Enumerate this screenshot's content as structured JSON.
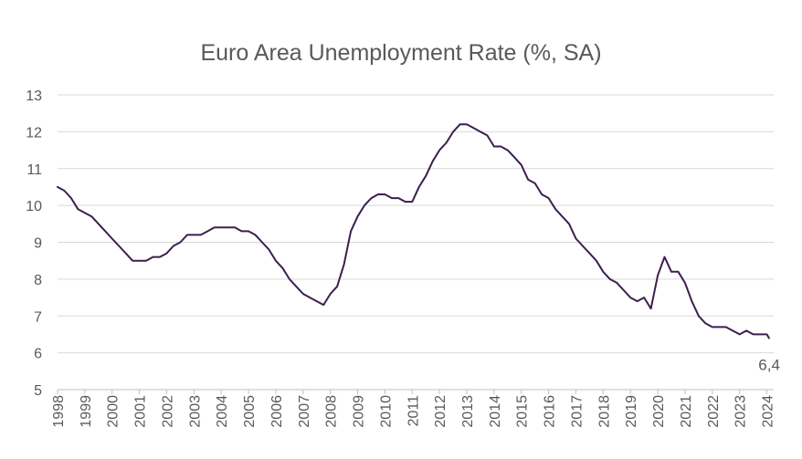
{
  "chart_data": {
    "type": "line",
    "title": "Euro Area Unemployment Rate (%, SA)",
    "xlabel": "",
    "ylabel": "",
    "ylim": [
      5,
      13
    ],
    "xlim": [
      1998,
      2024.25
    ],
    "yticks": [
      "5",
      "6",
      "7",
      "8",
      "9",
      "10",
      "11",
      "12",
      "13"
    ],
    "xticks": [
      "1998",
      "1999",
      "2000",
      "2001",
      "2002",
      "2003",
      "2004",
      "2005",
      "2006",
      "2007",
      "2008",
      "2009",
      "2010",
      "2011",
      "2012",
      "2013",
      "2014",
      "2015",
      "2016",
      "2017",
      "2018",
      "2019",
      "2020",
      "2021",
      "2022",
      "2023",
      "2024"
    ],
    "grid": true,
    "legend": "none",
    "line_color": "#3d1e4e",
    "end_label": "6,4",
    "series": [
      {
        "x": [
          1998.0,
          1998.25,
          1998.5,
          1998.75,
          1999.0,
          1999.25,
          1999.5,
          1999.75,
          2000.0,
          2000.25,
          2000.5,
          2000.75,
          2001.0,
          2001.25,
          2001.5,
          2001.75,
          2002.0,
          2002.25,
          2002.5,
          2002.75,
          2003.0,
          2003.25,
          2003.5,
          2003.75,
          2004.0,
          2004.25,
          2004.5,
          2004.75,
          2005.0,
          2005.25,
          2005.5,
          2005.75,
          2006.0,
          2006.25,
          2006.5,
          2006.75,
          2007.0,
          2007.25,
          2007.5,
          2007.75,
          2008.0,
          2008.25,
          2008.5,
          2008.75,
          2009.0,
          2009.25,
          2009.5,
          2009.75,
          2010.0,
          2010.25,
          2010.5,
          2010.75,
          2011.0,
          2011.25,
          2011.5,
          2011.75,
          2012.0,
          2012.25,
          2012.5,
          2012.75,
          2013.0,
          2013.25,
          2013.5,
          2013.75,
          2014.0,
          2014.25,
          2014.5,
          2014.75,
          2015.0,
          2015.25,
          2015.5,
          2015.75,
          2016.0,
          2016.25,
          2016.5,
          2016.75,
          2017.0,
          2017.25,
          2017.5,
          2017.75,
          2018.0,
          2018.25,
          2018.5,
          2018.75,
          2019.0,
          2019.25,
          2019.5,
          2019.75,
          2020.0,
          2020.25,
          2020.5,
          2020.75,
          2021.0,
          2021.25,
          2021.5,
          2021.75,
          2022.0,
          2022.25,
          2022.5,
          2022.75,
          2023.0,
          2023.25,
          2023.5,
          2023.75,
          2024.0,
          2024.08
        ],
        "values": [
          10.5,
          10.4,
          10.2,
          9.9,
          9.8,
          9.7,
          9.5,
          9.3,
          9.1,
          8.9,
          8.7,
          8.5,
          8.5,
          8.5,
          8.6,
          8.6,
          8.7,
          8.9,
          9.0,
          9.2,
          9.2,
          9.2,
          9.3,
          9.4,
          9.4,
          9.4,
          9.4,
          9.3,
          9.3,
          9.2,
          9.0,
          8.8,
          8.5,
          8.3,
          8.0,
          7.8,
          7.6,
          7.5,
          7.4,
          7.3,
          7.6,
          7.8,
          8.4,
          9.3,
          9.7,
          10.0,
          10.2,
          10.3,
          10.3,
          10.2,
          10.2,
          10.1,
          10.1,
          10.5,
          10.8,
          11.2,
          11.5,
          11.7,
          12.0,
          12.2,
          12.2,
          12.1,
          12.0,
          11.9,
          11.6,
          11.6,
          11.5,
          11.3,
          11.1,
          10.7,
          10.6,
          10.3,
          10.2,
          9.9,
          9.7,
          9.5,
          9.1,
          8.9,
          8.7,
          8.5,
          8.2,
          8.0,
          7.9,
          7.7,
          7.5,
          7.4,
          7.5,
          7.2,
          8.1,
          8.6,
          8.2,
          8.2,
          7.9,
          7.4,
          7.0,
          6.8,
          6.7,
          6.7,
          6.7,
          6.6,
          6.5,
          6.6,
          6.5,
          6.5,
          6.5,
          6.4
        ]
      }
    ]
  }
}
